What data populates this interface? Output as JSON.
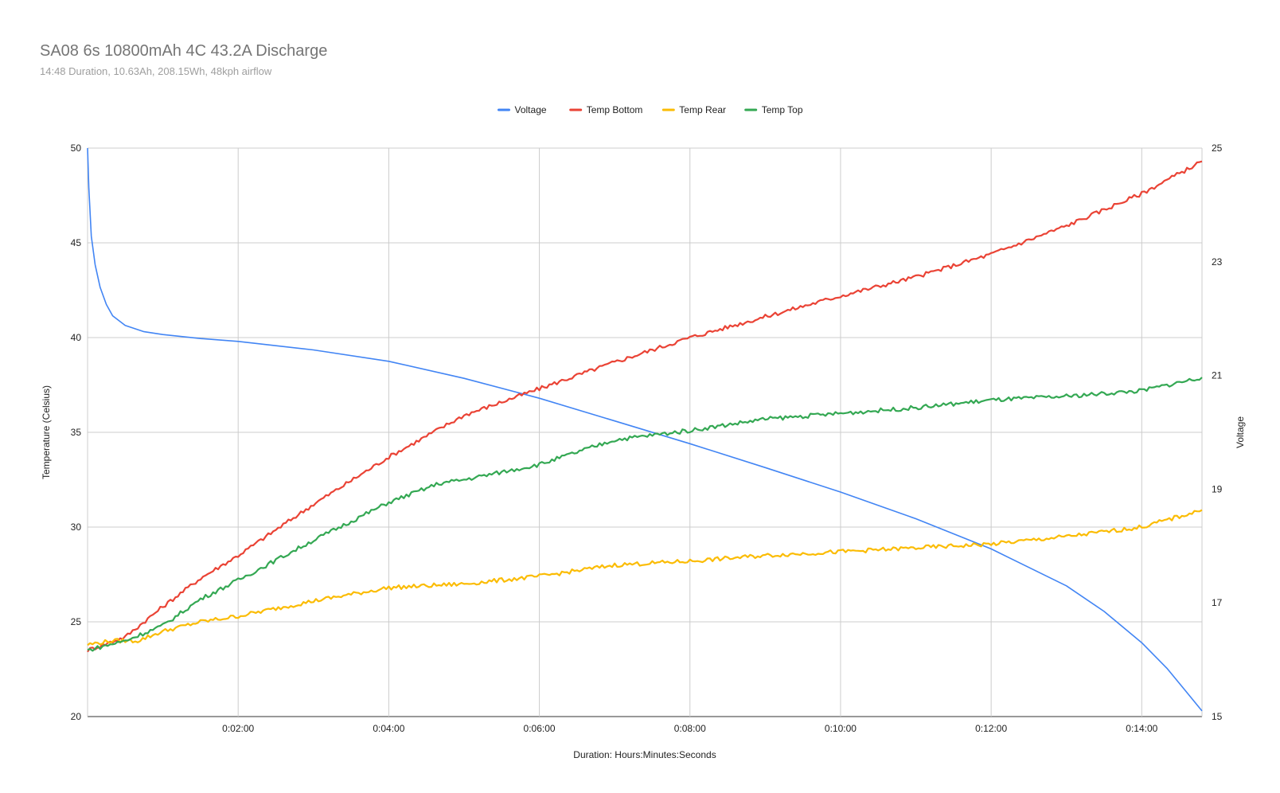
{
  "chart_data": {
    "type": "line",
    "title": "SA08 6s 10800mAh 4C 43.2A Discharge",
    "subtitle": "14:48 Duration, 10.63Ah, 208.15Wh, 48kph airflow",
    "xlabel": "Duration: Hours:Minutes:Seconds",
    "ylabel_left": "Temperature (Celsius)",
    "ylabel_right": "Voltage",
    "x_unit": "seconds",
    "xlim": [
      0,
      888
    ],
    "ylim_left": [
      20,
      50
    ],
    "ylim_right": [
      15,
      25
    ],
    "x_ticks": [
      {
        "value": 120,
        "label": "0:02:00"
      },
      {
        "value": 240,
        "label": "0:04:00"
      },
      {
        "value": 360,
        "label": "0:06:00"
      },
      {
        "value": 480,
        "label": "0:08:00"
      },
      {
        "value": 600,
        "label": "0:10:00"
      },
      {
        "value": 720,
        "label": "0:12:00"
      },
      {
        "value": 840,
        "label": "0:14:00"
      }
    ],
    "y_ticks_left": [
      "20",
      "25",
      "30",
      "35",
      "40",
      "45",
      "50"
    ],
    "y_ticks_right": [
      "15",
      "17",
      "19",
      "21",
      "23",
      "25"
    ],
    "grid": true,
    "legend_position": "top",
    "series": [
      {
        "name": "Voltage",
        "axis": "right",
        "color": "#4285f4",
        "x": [
          0,
          1,
          3,
          6,
          10,
          15,
          20,
          30,
          45,
          60,
          90,
          120,
          180,
          240,
          300,
          360,
          420,
          480,
          540,
          600,
          660,
          720,
          780,
          810,
          840,
          860,
          875,
          888
        ],
        "y": [
          25.0,
          24.3,
          23.45,
          22.95,
          22.55,
          22.25,
          22.05,
          21.88,
          21.77,
          21.72,
          21.65,
          21.6,
          21.45,
          21.25,
          20.95,
          20.6,
          20.2,
          19.8,
          19.38,
          18.95,
          18.48,
          17.95,
          17.3,
          16.85,
          16.3,
          15.85,
          15.45,
          15.1
        ]
      },
      {
        "name": "Temp Bottom",
        "axis": "left",
        "color": "#ea4335",
        "x": [
          0,
          30,
          60,
          90,
          120,
          180,
          240,
          300,
          360,
          420,
          480,
          540,
          600,
          660,
          720,
          780,
          840,
          888
        ],
        "y": [
          23.5,
          24.2,
          25.8,
          27.3,
          28.5,
          31.2,
          33.7,
          35.9,
          37.3,
          38.7,
          40.0,
          41.1,
          42.2,
          43.2,
          44.4,
          45.9,
          47.6,
          49.3
        ]
      },
      {
        "name": "Temp Rear",
        "axis": "left",
        "color": "#fbbc04",
        "x": [
          0,
          20,
          40,
          60,
          90,
          120,
          180,
          240,
          300,
          360,
          420,
          480,
          540,
          600,
          660,
          720,
          780,
          840,
          888
        ],
        "y": [
          23.8,
          24.0,
          24.0,
          24.5,
          25.0,
          25.3,
          26.1,
          26.8,
          27.0,
          27.4,
          28.0,
          28.2,
          28.5,
          28.7,
          28.9,
          29.1,
          29.5,
          30.0,
          30.9
        ]
      },
      {
        "name": "Temp Top",
        "axis": "left",
        "color": "#34a853",
        "x": [
          0,
          30,
          60,
          90,
          120,
          180,
          240,
          280,
          300,
          360,
          420,
          480,
          540,
          600,
          660,
          720,
          780,
          840,
          888
        ],
        "y": [
          23.5,
          24.0,
          24.8,
          26.2,
          27.2,
          29.3,
          31.3,
          32.3,
          32.5,
          33.3,
          34.6,
          35.1,
          35.7,
          36.0,
          36.3,
          36.7,
          36.9,
          37.2,
          37.9
        ]
      }
    ]
  }
}
